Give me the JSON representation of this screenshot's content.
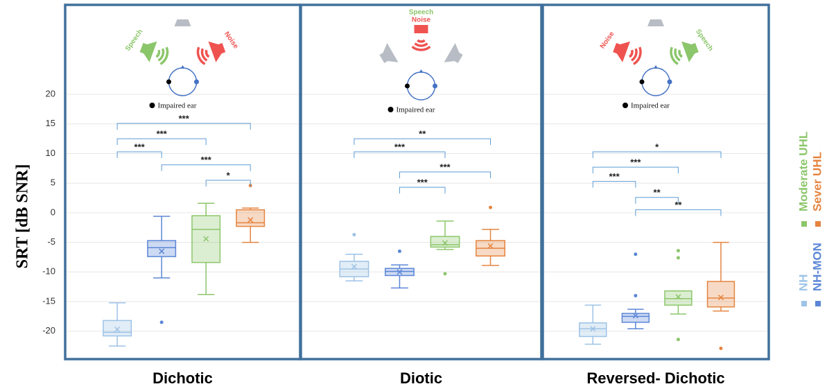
{
  "chart_data": {
    "type": "box",
    "ylabel": "SRT [dB SNR]",
    "ylim": [
      -24.6,
      35
    ],
    "yticks": [
      20,
      15,
      10,
      5,
      0,
      -5,
      -10,
      -15,
      -20
    ],
    "grid": true,
    "series": [
      {
        "name": "NH",
        "color": "#9dc3e6"
      },
      {
        "name": "NH-MON",
        "color": "#5b86d6"
      },
      {
        "name": "Moderate UHL",
        "color": "#8cc66b"
      },
      {
        "name": "Sever UHL",
        "color": "#e5843f"
      }
    ],
    "panels": [
      {
        "title": "Dichotic",
        "scene": {
          "left": "Speech",
          "right": "Noise",
          "ear": "Impaired ear"
        },
        "boxes": [
          {
            "min": -22.5,
            "q1": -20.8,
            "median": -20.2,
            "q3": -18.2,
            "max": -15.2,
            "mean": -19.7,
            "outliers": []
          },
          {
            "min": -11,
            "q1": -7.4,
            "median": -5.9,
            "q3": -4.7,
            "max": -0.6,
            "mean": -6.5,
            "outliers": [
              -18.5
            ]
          },
          {
            "min": -13.8,
            "q1": -8.4,
            "median": -2.8,
            "q3": -0.5,
            "max": 1.6,
            "mean": -4.4,
            "outliers": []
          },
          {
            "min": -5,
            "q1": -2.3,
            "median": -1.7,
            "q3": 0.5,
            "max": 0.8,
            "mean": -1.2,
            "outliers": [
              4.6
            ]
          }
        ],
        "brackets": [
          {
            "from": 0,
            "to": 3,
            "label": "***",
            "y": 15.1
          },
          {
            "from": 0,
            "to": 2,
            "label": "***",
            "y": 12.5
          },
          {
            "from": 0,
            "to": 1,
            "label": "***",
            "y": 10.3
          },
          {
            "from": 1,
            "to": 3,
            "label": "***",
            "y": 8.1
          },
          {
            "from": 2,
            "to": 3,
            "label": "*",
            "y": 5.5
          }
        ]
      },
      {
        "title": "Diotic",
        "scene": {
          "left": "Speech",
          "right": "Noise",
          "ear": "Impaired ear"
        },
        "boxes": [
          {
            "min": -11.5,
            "q1": -10.8,
            "median": -9.5,
            "q3": -8.2,
            "max": -7,
            "mean": -9.1,
            "outliers": [
              -3.7
            ]
          },
          {
            "min": -12.7,
            "q1": -10.6,
            "median": -9.9,
            "q3": -9.4,
            "max": -8.8,
            "mean": -10,
            "outliers": [
              -6.5
            ]
          },
          {
            "min": -6.2,
            "q1": -5.8,
            "median": -5.4,
            "q3": -4,
            "max": -1.4,
            "mean": -5.1,
            "outliers": [
              -10.3
            ]
          },
          {
            "min": -8.9,
            "q1": -7.3,
            "median": -6,
            "q3": -4.7,
            "max": -2.8,
            "mean": -5.6,
            "outliers": [
              0.9
            ]
          }
        ],
        "brackets": [
          {
            "from": 0,
            "to": 3,
            "label": "**",
            "y": 12.5
          },
          {
            "from": 0,
            "to": 2,
            "label": "***",
            "y": 10.3
          },
          {
            "from": 1,
            "to": 3,
            "label": "***",
            "y": 6.9
          },
          {
            "from": 1,
            "to": 2,
            "label": "***",
            "y": 4.3
          }
        ]
      },
      {
        "title": "Reversed- Dichotic",
        "scene": {
          "left": "Noise",
          "right": "Speech",
          "ear": "Impaired ear"
        },
        "boxes": [
          {
            "min": -22.2,
            "q1": -20.9,
            "median": -19.6,
            "q3": -18.6,
            "max": -15.6,
            "mean": -19.6,
            "outliers": []
          },
          {
            "min": -19.6,
            "q1": -18.5,
            "median": -17.5,
            "q3": -17,
            "max": -16.3,
            "mean": -17.4,
            "outliers": [
              -7,
              -14
            ]
          },
          {
            "min": -17.1,
            "q1": -15.6,
            "median": -14.5,
            "q3": -13.2,
            "max": -13.2,
            "mean": -14.2,
            "outliers": [
              -6.4,
              -7.6,
              -21.4
            ]
          },
          {
            "min": -16.6,
            "q1": -15.9,
            "median": -14.4,
            "q3": -11.6,
            "max": -5,
            "mean": -14.3,
            "outliers": [
              -22.9
            ]
          }
        ],
        "brackets": [
          {
            "from": 0,
            "to": 3,
            "label": "*",
            "y": 10.3
          },
          {
            "from": 0,
            "to": 2,
            "label": "***",
            "y": 7.7
          },
          {
            "from": 0,
            "to": 1,
            "label": "***",
            "y": 5.3
          },
          {
            "from": 1,
            "to": 2,
            "label": "**",
            "y": 2.6
          },
          {
            "from": 1,
            "to": 3,
            "label": "**",
            "y": 0.5
          }
        ]
      }
    ]
  }
}
